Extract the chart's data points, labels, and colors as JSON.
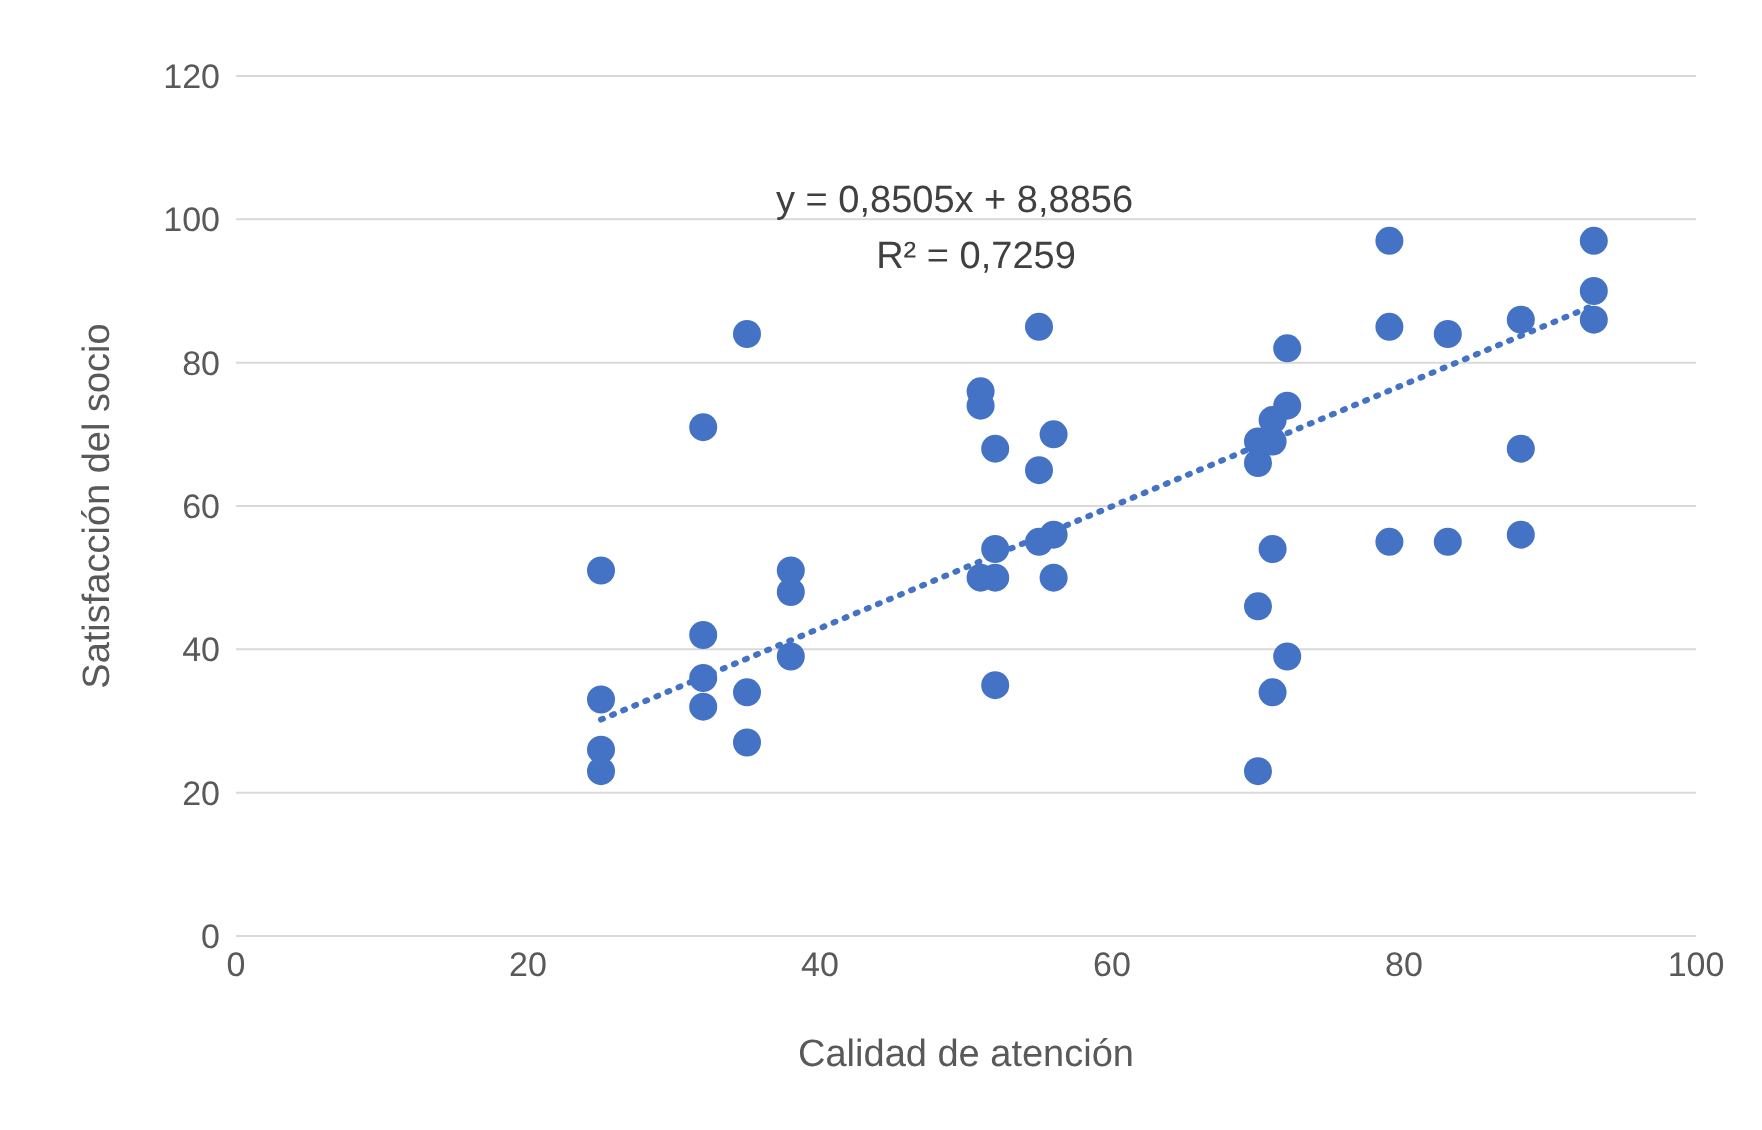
{
  "chart_data": {
    "type": "scatter",
    "xlabel": "Calidad de atención",
    "ylabel": "Satisfacción del socio",
    "x": [
      25,
      25,
      25,
      25,
      32,
      32,
      32,
      32,
      35,
      35,
      35,
      38,
      38,
      38,
      51,
      51,
      51,
      52,
      52,
      52,
      52,
      55,
      55,
      55,
      56,
      56,
      56,
      70,
      70,
      70,
      70,
      71,
      71,
      71,
      71,
      72,
      72,
      72,
      79,
      79,
      79,
      83,
      83,
      88,
      88,
      88,
      93,
      93,
      93
    ],
    "series": [
      {
        "color": "#4472c4",
        "marker": "circle",
        "values": [
          51,
          33,
          26,
          23,
          71,
          42,
          36,
          32,
          84,
          34,
          27,
          51,
          48,
          39,
          76,
          74,
          50,
          68,
          54,
          50,
          35,
          85,
          65,
          55,
          70,
          56,
          50,
          69,
          66,
          46,
          23,
          72,
          69,
          54,
          34,
          82,
          74,
          39,
          97,
          85,
          55,
          84,
          55,
          86,
          68,
          56,
          97,
          90,
          86
        ]
      },
      {
        "type": "line",
        "color": "#4472c4",
        "line_style": "dotted",
        "marker": "none",
        "x": [
          25,
          93
        ],
        "values": [
          30.2,
          88
        ]
      }
    ],
    "annotations": [
      "y = 0,8505x + 8,8856",
      "R² = 0,7259"
    ],
    "xlim": [
      0,
      100
    ],
    "xticks": [
      0,
      20,
      40,
      60,
      80,
      100
    ],
    "ylim": [
      0,
      120
    ],
    "yticks": [
      0,
      20,
      40,
      60,
      80,
      100,
      120
    ],
    "grid": "y",
    "legend": false
  }
}
